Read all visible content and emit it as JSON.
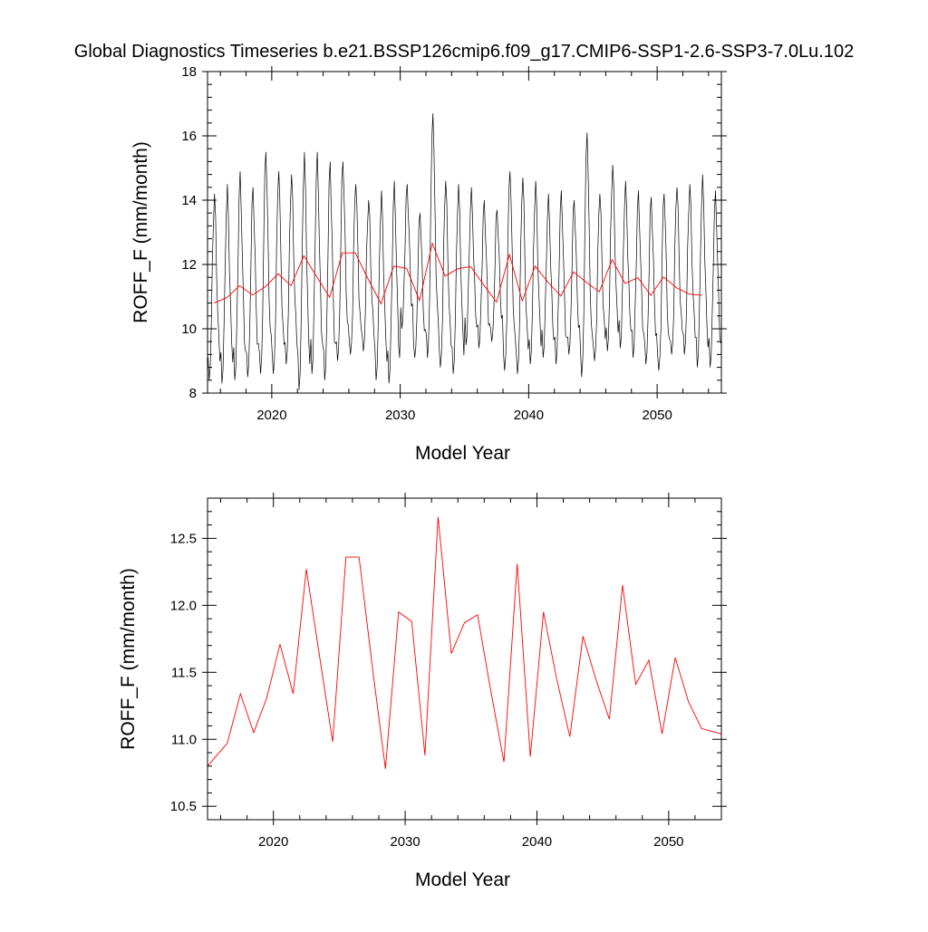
{
  "title": "Global Diagnostics Timeseries b.e21.BSSP126cmip6.f09_g17.CMIP6-SSP1-2.6-SSP3-7.0Lu.102",
  "chart_data": [
    {
      "type": "line",
      "xlabel": "Model Year",
      "ylabel": "ROFF_F (mm/month)",
      "xlim": [
        2015,
        2055
      ],
      "ylim": [
        8,
        18
      ],
      "xticks": [
        2020,
        2030,
        2040,
        2050
      ],
      "yticks": [
        8,
        10,
        12,
        14,
        16,
        18
      ],
      "x_tick_labels": [
        "2020",
        "2030",
        "2040",
        "2050"
      ],
      "y_tick_labels": [
        "8",
        "10",
        "12",
        "14",
        "16",
        "18"
      ],
      "grid": false,
      "series": [
        {
          "color": "#000000",
          "resolution": "monthly",
          "start_year": 2015,
          "seasonal_cycle": [
            9.3,
            8.6,
            9.0,
            10.2,
            12.0,
            13.6,
            14.3,
            13.4,
            12.0,
            10.7,
            9.8,
            9.4
          ],
          "annual_peaks": [
            14.2,
            14.5,
            14.9,
            14.4,
            15.5,
            14.9,
            14.8,
            15.5,
            15.5,
            15.2,
            15.2,
            14.5,
            14.0,
            14.3,
            14.6,
            14.5,
            13.6,
            16.7,
            14.6,
            14.5,
            14.4,
            14.0,
            13.7,
            14.9,
            14.7,
            14.6,
            14.2,
            14.3,
            14.0,
            16.1,
            14.2,
            15.1,
            14.6,
            14.3,
            14.1,
            14.2,
            14.4,
            14.5,
            14.8,
            14.3
          ],
          "annual_troughs": [
            8.4,
            8.3,
            8.4,
            8.5,
            8.6,
            8.6,
            8.9,
            8.1,
            8.6,
            8.4,
            9.0,
            9.2,
            9.3,
            8.4,
            8.3,
            10.0,
            9.1,
            9.1,
            8.8,
            8.6,
            9.5,
            9.4,
            9.6,
            8.7,
            8.6,
            8.9,
            9.1,
            8.9,
            9.2,
            8.5,
            9.0,
            9.3,
            9.4,
            9.1,
            8.9,
            8.7,
            9.2,
            9.2,
            8.8,
            8.8
          ]
        },
        {
          "color": "#ff0000",
          "resolution": "annual",
          "x": [
            2015.5,
            2016.5,
            2017.5,
            2018.5,
            2019.5,
            2020.5,
            2021.5,
            2022.5,
            2023.5,
            2024.5,
            2025.5,
            2026.5,
            2027.5,
            2028.5,
            2029.5,
            2030.5,
            2031.5,
            2032.5,
            2033.5,
            2034.5,
            2035.5,
            2036.5,
            2037.5,
            2038.5,
            2039.5,
            2040.5,
            2041.5,
            2042.5,
            2043.5,
            2044.5,
            2045.5,
            2046.5,
            2047.5,
            2048.5,
            2049.5,
            2050.5,
            2051.5,
            2052.5,
            2053.5
          ],
          "y": [
            10.8,
            10.97,
            11.34,
            11.05,
            11.31,
            11.71,
            11.34,
            12.27,
            11.62,
            10.98,
            12.36,
            12.36,
            11.55,
            10.78,
            11.95,
            11.88,
            10.88,
            12.66,
            11.64,
            11.87,
            11.93,
            11.36,
            10.83,
            12.31,
            10.87,
            11.95,
            11.45,
            11.02,
            11.77,
            11.44,
            11.15,
            12.15,
            11.41,
            11.59,
            11.04,
            11.61,
            11.28,
            11.08,
            11.04
          ]
        }
      ]
    },
    {
      "type": "line",
      "xlabel": "Model Year",
      "ylabel": "ROFF_F (mm/month)",
      "xlim": [
        2015,
        2054
      ],
      "ylim": [
        10.4,
        12.8
      ],
      "xticks": [
        2020,
        2030,
        2040,
        2050
      ],
      "yticks": [
        10.5,
        11.0,
        11.5,
        12.0,
        12.5
      ],
      "x_tick_labels": [
        "2020",
        "2030",
        "2040",
        "2050"
      ],
      "y_tick_labels": [
        "10.5",
        "11.0",
        "11.5",
        "12.0",
        "12.5"
      ],
      "grid": false,
      "series": [
        {
          "color": "#ff0000",
          "resolution": "annual",
          "x": [
            2015,
            2016.5,
            2017.5,
            2018.5,
            2019.5,
            2020.5,
            2021.5,
            2022.5,
            2023.5,
            2024.5,
            2025.5,
            2026.5,
            2027.5,
            2028.5,
            2029.5,
            2030.5,
            2031.5,
            2032.5,
            2033.5,
            2034.5,
            2035.5,
            2036.5,
            2037.5,
            2038.5,
            2039.5,
            2040.5,
            2041.5,
            2042.5,
            2043.5,
            2044.5,
            2045.5,
            2046.5,
            2047.5,
            2048.5,
            2049.5,
            2050.5,
            2051.5,
            2052.5,
            2054
          ],
          "y": [
            10.8,
            10.97,
            11.34,
            11.05,
            11.31,
            11.71,
            11.34,
            12.27,
            11.62,
            10.98,
            12.36,
            12.36,
            11.55,
            10.78,
            11.95,
            11.88,
            10.88,
            12.66,
            11.64,
            11.87,
            11.93,
            11.36,
            10.83,
            12.31,
            10.87,
            11.95,
            11.45,
            11.02,
            11.77,
            11.44,
            11.15,
            12.15,
            11.41,
            11.59,
            11.04,
            11.61,
            11.28,
            11.08,
            11.04
          ]
        }
      ]
    }
  ]
}
